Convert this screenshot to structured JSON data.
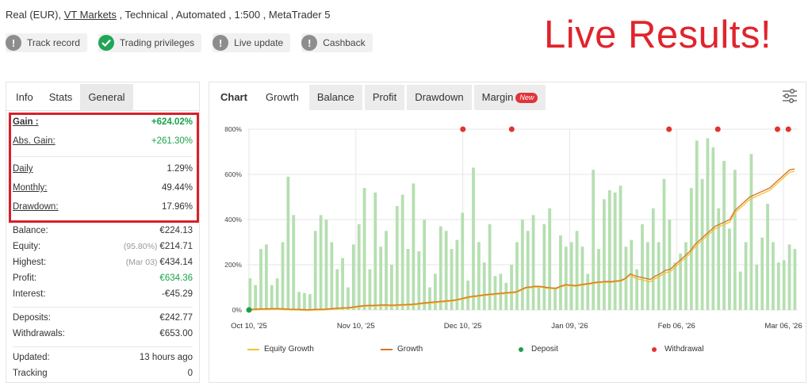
{
  "header": {
    "account_prefix": "Real (EUR), ",
    "broker": "VT Markets",
    "account_suffix": " , Technical , Automated , 1:500 , MetaTrader 5",
    "live_results": "Live Results!",
    "badges": [
      {
        "label": "Track record",
        "icon": "exclamation-icon",
        "color": "#8d8d8d"
      },
      {
        "label": "Trading privileges",
        "icon": "check-icon",
        "color": "#21a556"
      },
      {
        "label": "Live update",
        "icon": "exclamation-icon",
        "color": "#8d8d8d"
      },
      {
        "label": "Cashback",
        "icon": "exclamation-icon",
        "color": "#8d8d8d"
      }
    ]
  },
  "left_tabs": [
    "Info",
    "Stats",
    "General"
  ],
  "stats": {
    "gain": {
      "label": "Gain :",
      "value": "+624.02%"
    },
    "abs_gain": {
      "label": "Abs. Gain:",
      "value": "+261.30%"
    },
    "daily": {
      "label": "Daily",
      "value": "1.29%"
    },
    "monthly": {
      "label": "Monthly:",
      "value": "49.44%"
    },
    "drawdown": {
      "label": "Drawdown:",
      "value": "17.96%"
    },
    "balance": {
      "label": "Balance:",
      "value": "€224.13"
    },
    "equity": {
      "label": "Equity:",
      "sub": "(95.80%)",
      "value": "€214.71"
    },
    "highest": {
      "label": "Highest:",
      "sub": "(Mar 03)",
      "value": "€434.14"
    },
    "profit": {
      "label": "Profit:",
      "value": "€634.36"
    },
    "interest": {
      "label": "Interest:",
      "value": "-€45.29"
    },
    "deposits": {
      "label": "Deposits:",
      "value": "€242.77"
    },
    "withdrawals": {
      "label": "Withdrawals:",
      "value": "€653.00"
    },
    "updated": {
      "label": "Updated:",
      "value": "13 hours ago"
    },
    "tracking": {
      "label": "Tracking",
      "value": "0"
    }
  },
  "chart_tabs": {
    "chart": "Chart",
    "growth": "Growth",
    "balance": "Balance",
    "profit": "Profit",
    "drawdown": "Drawdown",
    "margin": "Margin",
    "new_badge": "New"
  },
  "colors": {
    "bar": "#b5dfb0",
    "equity": "#f0c330",
    "growth": "#d9772a",
    "deposit": "#1f9e4a",
    "withdrawal": "#e2332f",
    "highlight": "#d7202a"
  },
  "chart_data": {
    "type": "bar",
    "y_ticks": [
      "800%",
      "600%",
      "400%",
      "200%",
      "0%"
    ],
    "ylim": [
      0,
      800
    ],
    "x_ticks": [
      "Oct 10, '25",
      "Nov 10, '25",
      "Dec 10, '25",
      "Jan 09, '26",
      "Feb 06, '26",
      "Mar 06, '26"
    ],
    "grid": true,
    "legend_position": "bottom",
    "legend": [
      "Equity Growth",
      "Growth",
      "Deposit",
      "Withdrawal"
    ],
    "bars": [
      140,
      110,
      270,
      290,
      110,
      140,
      300,
      590,
      420,
      80,
      75,
      70,
      350,
      420,
      400,
      300,
      180,
      230,
      100,
      290,
      380,
      540,
      180,
      520,
      280,
      350,
      200,
      460,
      510,
      270,
      560,
      260,
      400,
      100,
      160,
      370,
      350,
      270,
      310,
      430,
      130,
      630,
      300,
      210,
      380,
      150,
      160,
      120,
      200,
      300,
      400,
      350,
      420,
      100,
      380,
      450,
      100,
      330,
      280,
      300,
      350,
      280,
      160,
      620,
      270,
      490,
      530,
      520,
      550,
      280,
      310,
      180,
      380,
      300,
      450,
      300,
      580,
      400,
      210,
      250,
      300,
      540,
      750,
      580,
      760,
      720,
      450,
      660,
      360,
      620,
      170,
      300,
      690,
      200,
      320,
      470,
      300,
      210,
      220,
      290,
      270
    ],
    "growth": [
      2,
      3,
      4,
      5,
      5,
      6,
      6,
      5,
      4,
      3,
      3,
      2,
      1,
      2,
      3,
      3,
      4,
      6,
      8,
      9,
      10,
      12,
      15,
      18,
      20,
      20,
      21,
      22,
      22,
      21,
      22,
      23,
      24,
      25,
      27,
      30,
      32,
      34,
      36,
      38,
      40,
      42,
      45,
      50,
      55,
      60,
      62,
      65,
      68,
      70,
      72,
      74,
      76,
      78,
      80,
      90,
      100,
      102,
      105,
      104,
      100,
      98,
      96,
      105,
      112,
      110,
      108,
      112,
      115,
      118,
      122,
      124,
      126,
      125,
      128,
      130,
      140,
      160,
      150,
      145,
      140,
      135,
      150,
      160,
      175,
      180,
      200,
      220,
      240,
      260,
      290,
      310,
      330,
      350,
      370,
      380,
      390,
      400,
      440,
      460,
      480,
      500,
      510,
      520,
      530,
      540,
      560,
      580,
      600,
      620,
      624
    ],
    "withdrawal_markers": 6,
    "deposit_markers": 1
  }
}
